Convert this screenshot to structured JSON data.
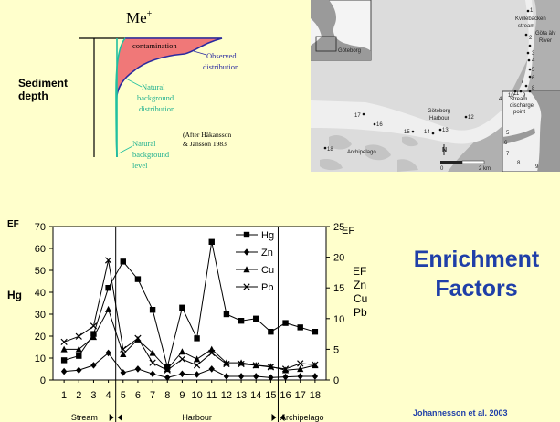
{
  "concept": {
    "axis_label": "Me",
    "axis_sup": "+",
    "depth_label_1": "Sediment",
    "depth_label_2": "depth",
    "contamination": "contamination",
    "observed_1": "Observed",
    "observed_2": "distribution",
    "natbg_dist_1": "Natural",
    "natbg_dist_2": "background",
    "natbg_dist_3": "distribution",
    "natbg_level_1": "Natural",
    "natbg_level_2": "background",
    "natbg_level_3": "level",
    "citation_1": "(After Håkansson",
    "citation_2": "& Jansson 1983",
    "colors": {
      "contamination_fill": "#f07878",
      "observed_line": "#2a2aa0",
      "background_line": "#20c0a0"
    }
  },
  "map": {
    "goteborg_inset": "Göteborg",
    "kvillebacken_1": "Kvillebäcken",
    "kvillebacken_2": "stream",
    "gota_1": "Göta älv",
    "gota_2": "River",
    "harbour_1": "Göteborg",
    "harbour_2": "Harbour",
    "archipelago": "Archipelago",
    "inset_1": "Stream",
    "inset_2": "discharge",
    "inset_3": "point",
    "north": "N",
    "scale_0": "0",
    "scale_1": "2 km",
    "stations": [
      "1",
      "2",
      "3",
      "4",
      "5",
      "6",
      "7",
      "8",
      "9",
      "10",
      "11",
      "12",
      "13",
      "14",
      "15",
      "16",
      "17",
      "18"
    ]
  },
  "chart_data": {
    "type": "line",
    "x": [
      1,
      2,
      3,
      4,
      5,
      6,
      7,
      8,
      9,
      10,
      11,
      12,
      13,
      14,
      15,
      16,
      17,
      18
    ],
    "x_tick_labels": [
      "1",
      "2",
      "3",
      "4",
      "5",
      "6",
      "7",
      "8",
      "9",
      "10",
      "11",
      "12",
      "13",
      "14",
      "15",
      "16",
      "17",
      "18"
    ],
    "left_axis": {
      "label_top": "EF",
      "label_mid": "Hg",
      "ylim": [
        0,
        70
      ],
      "ticks": [
        "0",
        "10",
        "20",
        "30",
        "40",
        "50",
        "60",
        "70"
      ]
    },
    "right_axis": {
      "label_top": "EF",
      "labels": [
        "EF",
        "Zn",
        "Cu",
        "Pb"
      ],
      "ylim": [
        0,
        25
      ],
      "ticks": [
        "0",
        "5",
        "10",
        "15",
        "20",
        "25"
      ]
    },
    "series": [
      {
        "name": "Hg",
        "marker": "square",
        "axis": "left",
        "values": [
          9,
          11,
          21,
          42,
          54,
          46,
          32,
          6,
          33,
          19,
          63,
          30,
          27,
          28,
          22,
          26,
          24,
          22
        ]
      },
      {
        "name": "Zn",
        "marker": "diamond",
        "axis": "right",
        "values": [
          1.4,
          1.6,
          2.4,
          4.4,
          1.2,
          1.8,
          1.0,
          0.4,
          1.0,
          0.9,
          1.8,
          0.6,
          0.6,
          0.6,
          0.4,
          0.5,
          0.6,
          0.6
        ]
      },
      {
        "name": "Cu",
        "marker": "triangle",
        "axis": "right",
        "values": [
          5,
          5,
          7,
          11.5,
          4.2,
          6.6,
          4.4,
          1.8,
          4.6,
          3.4,
          5,
          2.8,
          2.8,
          2.4,
          2.2,
          1.6,
          1.8,
          2.4
        ]
      },
      {
        "name": "Pb",
        "marker": "x",
        "axis": "right",
        "values": [
          6.2,
          7.1,
          8.8,
          19.5,
          5,
          6.8,
          2.8,
          1.6,
          3.4,
          2.4,
          4.4,
          2.6,
          2.6,
          2.4,
          2.1,
          1.8,
          2.7,
          2.5
        ]
      }
    ],
    "regions": [
      {
        "label": "Stream",
        "from": 1,
        "to": 4
      },
      {
        "label": "Harbour",
        "from": 5,
        "to": 15
      },
      {
        "label": "Archipelago",
        "from": 16,
        "to": 18
      }
    ],
    "grid": false,
    "legend_position": "top-right"
  },
  "title": {
    "line1": "Enrichment",
    "line2": "Factors"
  },
  "credit": "Johannesson et al.  2003"
}
